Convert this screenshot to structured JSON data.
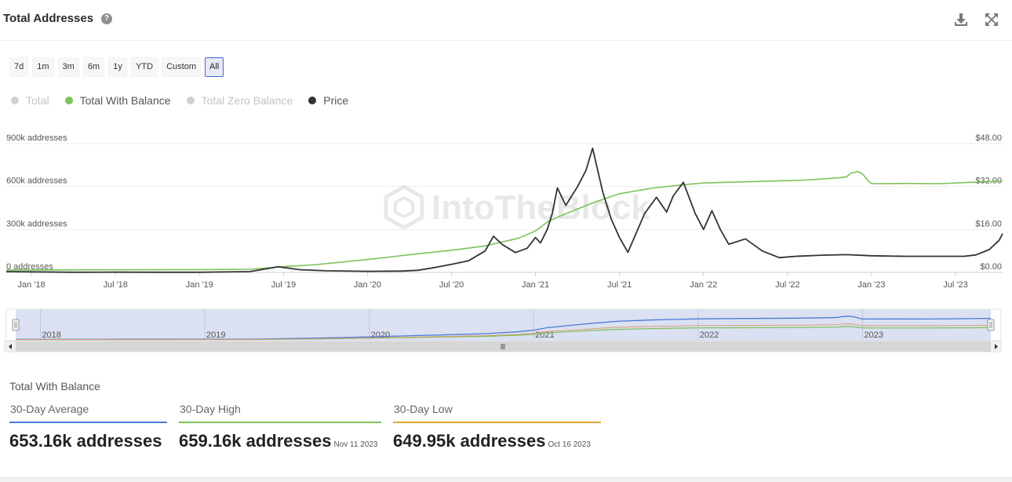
{
  "header": {
    "title": "Total Addresses",
    "help_icon": "question-circle-icon",
    "download_icon": "download-icon",
    "expand_icon": "fullscreen-icon"
  },
  "ranges": [
    "7d",
    "1m",
    "3m",
    "6m",
    "1y",
    "YTD",
    "Custom",
    "All"
  ],
  "active_range": "All",
  "legend": [
    {
      "label": "Total",
      "color": "#d0d0d0",
      "active": false
    },
    {
      "label": "Total With Balance",
      "color": "#7ec15a",
      "active": true
    },
    {
      "label": "Total Zero Balance",
      "color": "#d0d0d0",
      "active": false
    },
    {
      "label": "Price",
      "color": "#333333",
      "active": true
    }
  ],
  "watermark": "IntoTheBlock",
  "chart_data": {
    "type": "line",
    "x_tick_labels": [
      "Jan '18",
      "Jul '18",
      "Jan '19",
      "Jul '19",
      "Jan '20",
      "Jul '20",
      "Jan '21",
      "Jul '21",
      "Jan '22",
      "Jul '22",
      "Jan '23",
      "Jul '23"
    ],
    "y_left_ticks": [
      {
        "value": 0,
        "label": "0 addresses"
      },
      {
        "value": 300,
        "label": "300k addresses"
      },
      {
        "value": 600,
        "label": "600k addresses"
      },
      {
        "value": 900,
        "label": "900k addresses"
      }
    ],
    "y_right_ticks": [
      {
        "value": 0,
        "label": "$0.00"
      },
      {
        "value": 16,
        "label": "$16.00"
      },
      {
        "value": 32,
        "label": "$32.00"
      },
      {
        "value": 48,
        "label": "$48.00"
      }
    ],
    "y_left_range": [
      0,
      900
    ],
    "y_right_range": [
      0,
      48
    ],
    "x_range": [
      2017.85,
      2023.78
    ],
    "series": [
      {
        "name": "Total With Balance",
        "unit": "k addresses",
        "axis": "left",
        "color": "#7ec15a",
        "points": [
          [
            2017.85,
            16
          ],
          [
            2018.0,
            17
          ],
          [
            2018.5,
            18
          ],
          [
            2019.0,
            20
          ],
          [
            2019.3,
            22
          ],
          [
            2019.5,
            40
          ],
          [
            2019.7,
            55
          ],
          [
            2020.0,
            90
          ],
          [
            2020.3,
            130
          ],
          [
            2020.5,
            155
          ],
          [
            2020.7,
            185
          ],
          [
            2020.9,
            240
          ],
          [
            2021.0,
            290
          ],
          [
            2021.08,
            360
          ],
          [
            2021.2,
            420
          ],
          [
            2021.35,
            490
          ],
          [
            2021.5,
            550
          ],
          [
            2021.7,
            590
          ],
          [
            2021.9,
            615
          ],
          [
            2022.0,
            625
          ],
          [
            2022.3,
            635
          ],
          [
            2022.6,
            645
          ],
          [
            2022.8,
            660
          ],
          [
            2022.85,
            668
          ],
          [
            2022.88,
            695
          ],
          [
            2022.92,
            705
          ],
          [
            2022.95,
            685
          ],
          [
            2022.98,
            640
          ],
          [
            2023.0,
            620
          ],
          [
            2023.2,
            622
          ],
          [
            2023.4,
            620
          ],
          [
            2023.6,
            630
          ],
          [
            2023.78,
            640
          ]
        ]
      },
      {
        "name": "Price",
        "unit": "USD",
        "axis": "right",
        "color": "#333333",
        "points": [
          [
            2017.85,
            0.3
          ],
          [
            2018.0,
            0.2
          ],
          [
            2018.25,
            0.05
          ],
          [
            2018.5,
            0.1
          ],
          [
            2018.75,
            0.05
          ],
          [
            2019.0,
            0.05
          ],
          [
            2019.3,
            0.3
          ],
          [
            2019.47,
            2.1
          ],
          [
            2019.6,
            1.0
          ],
          [
            2019.75,
            0.6
          ],
          [
            2020.0,
            0.4
          ],
          [
            2020.2,
            0.5
          ],
          [
            2020.3,
            0.8
          ],
          [
            2020.4,
            1.8
          ],
          [
            2020.5,
            3.0
          ],
          [
            2020.6,
            4.3
          ],
          [
            2020.7,
            8.0
          ],
          [
            2020.75,
            13.5
          ],
          [
            2020.8,
            10.5
          ],
          [
            2020.88,
            7.4
          ],
          [
            2020.95,
            9.0
          ],
          [
            2021.0,
            13.0
          ],
          [
            2021.03,
            11.0
          ],
          [
            2021.07,
            16.0
          ],
          [
            2021.1,
            22.0
          ],
          [
            2021.13,
            31.5
          ],
          [
            2021.18,
            25.0
          ],
          [
            2021.25,
            32.0
          ],
          [
            2021.3,
            38.0
          ],
          [
            2021.34,
            46.3
          ],
          [
            2021.4,
            30.0
          ],
          [
            2021.45,
            20.0
          ],
          [
            2021.5,
            13.0
          ],
          [
            2021.55,
            7.5
          ],
          [
            2021.65,
            22.0
          ],
          [
            2021.72,
            28.0
          ],
          [
            2021.78,
            22.5
          ],
          [
            2021.82,
            28.5
          ],
          [
            2021.88,
            33.6
          ],
          [
            2021.95,
            22.0
          ],
          [
            2022.0,
            16.0
          ],
          [
            2022.05,
            23.0
          ],
          [
            2022.1,
            16.0
          ],
          [
            2022.15,
            10.5
          ],
          [
            2022.25,
            12.5
          ],
          [
            2022.35,
            8.0
          ],
          [
            2022.45,
            5.5
          ],
          [
            2022.55,
            6.0
          ],
          [
            2022.7,
            6.4
          ],
          [
            2022.85,
            6.6
          ],
          [
            2023.0,
            6.2
          ],
          [
            2023.2,
            6.0
          ],
          [
            2023.4,
            6.0
          ],
          [
            2023.55,
            6.0
          ],
          [
            2023.62,
            6.5
          ],
          [
            2023.7,
            8.5
          ],
          [
            2023.76,
            12.0
          ],
          [
            2023.78,
            14.5
          ]
        ]
      }
    ]
  },
  "navigator": {
    "year_labels": [
      "2018",
      "2019",
      "2020",
      "2021",
      "2022",
      "2023"
    ],
    "grip_icon": "drag-grip-icon",
    "left_arrow": "arrow-left-icon",
    "right_arrow": "arrow-right-icon"
  },
  "stats": {
    "title": "Total With Balance",
    "items": [
      {
        "label": "30-Day Average",
        "value": "653.16k addresses",
        "date": "",
        "color": "#4a7bd6"
      },
      {
        "label": "30-Day High",
        "value": "659.16k addresses",
        "date": "Nov 11 2023",
        "color": "#7ec15a"
      },
      {
        "label": "30-Day Low",
        "value": "649.95k addresses",
        "date": "Oct 16 2023",
        "color": "#e6a735"
      }
    ]
  }
}
